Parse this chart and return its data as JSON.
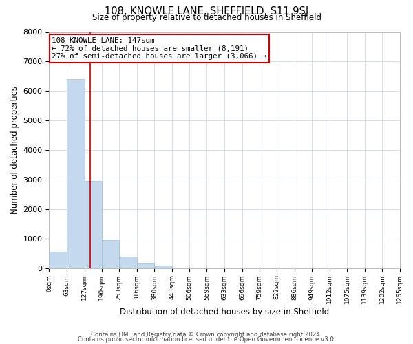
{
  "title": "108, KNOWLE LANE, SHEFFIELD, S11 9SJ",
  "subtitle": "Size of property relative to detached houses in Sheffield",
  "xlabel": "Distribution of detached houses by size in Sheffield",
  "ylabel": "Number of detached properties",
  "bar_color": "#c5d9ee",
  "bar_edgecolor": "#a0bcd8",
  "bin_edges": [
    0,
    63,
    127,
    190,
    253,
    316,
    380,
    443,
    506,
    569,
    633,
    696,
    759,
    822,
    886,
    949,
    1012,
    1075,
    1139,
    1202,
    1265
  ],
  "bar_heights": [
    550,
    6400,
    2950,
    950,
    380,
    170,
    85,
    0,
    0,
    0,
    0,
    0,
    0,
    0,
    0,
    0,
    0,
    0,
    0,
    0
  ],
  "tick_labels": [
    "0sqm",
    "63sqm",
    "127sqm",
    "190sqm",
    "253sqm",
    "316sqm",
    "380sqm",
    "443sqm",
    "506sqm",
    "569sqm",
    "633sqm",
    "696sqm",
    "759sqm",
    "822sqm",
    "886sqm",
    "949sqm",
    "1012sqm",
    "1075sqm",
    "1139sqm",
    "1202sqm",
    "1265sqm"
  ],
  "ylim": [
    0,
    8000
  ],
  "yticks": [
    0,
    1000,
    2000,
    3000,
    4000,
    5000,
    6000,
    7000,
    8000
  ],
  "red_line_x": 147,
  "annotation_title": "108 KNOWLE LANE: 147sqm",
  "annotation_line1": "← 72% of detached houses are smaller (8,191)",
  "annotation_line2": "27% of semi-detached houses are larger (3,066) →",
  "annotation_box_color": "#ffffff",
  "annotation_box_edgecolor": "#cc0000",
  "red_line_color": "#cc0000",
  "grid_color": "#ccd9e8",
  "footer1": "Contains HM Land Registry data © Crown copyright and database right 2024.",
  "footer2": "Contains public sector information licensed under the Open Government Licence v3.0.",
  "bg_color": "#ffffff",
  "fig_width": 6.0,
  "fig_height": 5.0,
  "dpi": 100
}
